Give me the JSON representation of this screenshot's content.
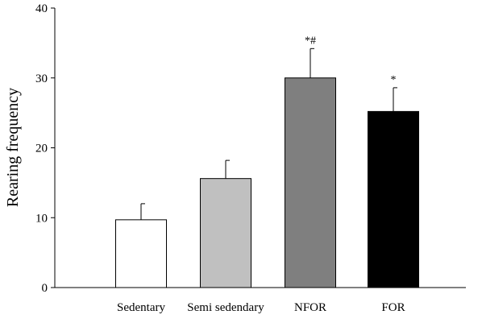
{
  "chart_data": {
    "type": "bar",
    "ylabel": "Rearing frequency",
    "xlabel": "",
    "ylim": [
      0,
      40
    ],
    "yticks": [
      0,
      10,
      20,
      30,
      40
    ],
    "categories": [
      "Sedentary",
      "Semi sedendary",
      "NFOR",
      "FOR"
    ],
    "values": [
      9.7,
      15.6,
      30.0,
      25.2
    ],
    "errors": [
      2.3,
      2.6,
      4.2,
      3.4
    ],
    "annotations": [
      "",
      "",
      "*#",
      "*"
    ],
    "colors": [
      "#ffffff",
      "#c0c0c0",
      "#7f7f7f",
      "#000000"
    ],
    "grid": false
  }
}
